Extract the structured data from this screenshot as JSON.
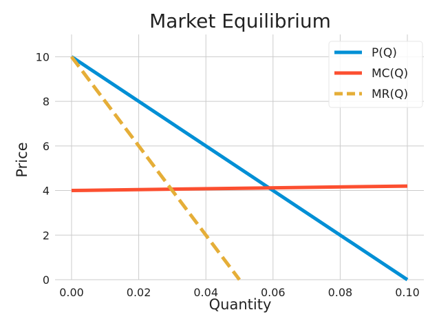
{
  "chart_data": {
    "type": "line",
    "title": "Market Equilibrium",
    "xlabel": "Quantity",
    "ylabel": "Price",
    "xlim": [
      0,
      0.1
    ],
    "ylim": [
      0,
      11
    ],
    "xticks": [
      0.0,
      0.02,
      0.04,
      0.06,
      0.08,
      0.1
    ],
    "xtick_labels": [
      "0.00",
      "0.02",
      "0.04",
      "0.06",
      "0.08",
      "0.10"
    ],
    "yticks": [
      0,
      2,
      4,
      6,
      8,
      10
    ],
    "ytick_labels": [
      "0",
      "2",
      "4",
      "6",
      "8",
      "10"
    ],
    "grid": true,
    "legend_position": "top-right",
    "series": [
      {
        "name": "P(Q)",
        "color": "#008fd5",
        "dash": "solid",
        "x": [
          0.0,
          0.1
        ],
        "y": [
          10,
          0
        ]
      },
      {
        "name": "MC(Q)",
        "color": "#fc4f30",
        "dash": "solid",
        "x": [
          0.0,
          0.1
        ],
        "y": [
          4.0,
          4.2
        ]
      },
      {
        "name": "MR(Q)",
        "color": "#e5ae38",
        "dash": "dashed",
        "x": [
          0.0,
          0.05
        ],
        "y": [
          10,
          0
        ]
      }
    ]
  }
}
